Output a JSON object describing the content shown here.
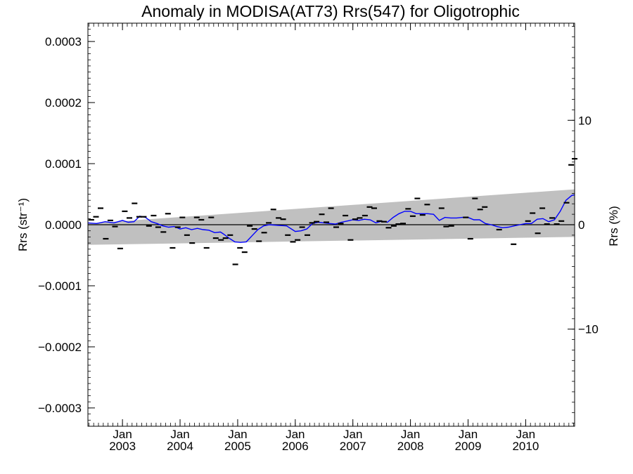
{
  "chart_data": {
    "type": "scatter",
    "title": "Anomaly in MODISA(AT73) Rrs(547) for Oligotrophic",
    "ylabel": "Rrs (str⁻¹)",
    "y2label": "Rrs (%)",
    "xlabel": "",
    "xlim": [
      2002.4,
      2010.85
    ],
    "ylim": [
      -0.00033,
      0.00033
    ],
    "y2lim": [
      -19.3,
      19.3
    ],
    "grid": false,
    "yticks": [
      {
        "value": 0.0003,
        "label": "0.0003"
      },
      {
        "value": 0.0002,
        "label": "0.0002"
      },
      {
        "value": 0.0001,
        "label": "0.0001"
      },
      {
        "value": 0.0,
        "label": "0.0000"
      },
      {
        "value": -0.0001,
        "label": "−0.0001"
      },
      {
        "value": -0.0002,
        "label": "−0.0002"
      },
      {
        "value": -0.0003,
        "label": "−0.0003"
      }
    ],
    "y2ticks": [
      {
        "value": 10,
        "label": "10"
      },
      {
        "value": 0,
        "label": "0"
      },
      {
        "value": -10,
        "label": "−10"
      }
    ],
    "xticks": [
      {
        "value": 2003.0,
        "month": "Jan",
        "year": "2003"
      },
      {
        "value": 2004.0,
        "month": "Jan",
        "year": "2004"
      },
      {
        "value": 2005.0,
        "month": "Jan",
        "year": "2005"
      },
      {
        "value": 2006.0,
        "month": "Jan",
        "year": "2006"
      },
      {
        "value": 2007.0,
        "month": "Jan",
        "year": "2007"
      },
      {
        "value": 2008.0,
        "month": "Jan",
        "year": "2008"
      },
      {
        "value": 2009.0,
        "month": "Jan",
        "year": "2009"
      },
      {
        "value": 2010.0,
        "month": "Jan",
        "year": "2010"
      }
    ],
    "band": {
      "color": "#c0c0c0",
      "x": [
        2002.4,
        2010.85
      ],
      "upper": [
        2e-06,
        5.8e-05
      ],
      "lower": [
        -3.3e-05,
        -2e-05
      ]
    },
    "monthly_anomaly": {
      "color": "#000000",
      "points": [
        [
          2002.46,
          8e-06
        ],
        [
          2002.54,
          1.3e-05
        ],
        [
          2002.62,
          2.7e-05
        ],
        [
          2002.71,
          -2.3e-05
        ],
        [
          2002.79,
          7e-06
        ],
        [
          2002.87,
          -3e-06
        ],
        [
          2002.96,
          -3.9e-05
        ],
        [
          2003.04,
          2.2e-05
        ],
        [
          2003.12,
          1.1e-05
        ],
        [
          2003.21,
          3.5e-05
        ],
        [
          2003.29,
          1.3e-05
        ],
        [
          2003.37,
          1.3e-05
        ],
        [
          2003.46,
          -2e-06
        ],
        [
          2003.54,
          1.5e-05
        ],
        [
          2003.62,
          -4e-06
        ],
        [
          2003.71,
          -1.2e-05
        ],
        [
          2003.79,
          1.8e-05
        ],
        [
          2003.87,
          -3.8e-05
        ],
        [
          2003.96,
          -4e-06
        ],
        [
          2004.04,
          1.2e-05
        ],
        [
          2004.12,
          -1.7e-05
        ],
        [
          2004.21,
          -3e-05
        ],
        [
          2004.29,
          1.2e-05
        ],
        [
          2004.37,
          8e-06
        ],
        [
          2004.46,
          -3.8e-05
        ],
        [
          2004.54,
          1.2e-05
        ],
        [
          2004.62,
          -2.2e-05
        ],
        [
          2004.71,
          -2.5e-05
        ],
        [
          2004.79,
          -2.2e-05
        ],
        [
          2004.87,
          -1.7e-05
        ],
        [
          2004.96,
          -6.5e-05
        ],
        [
          2005.04,
          -3.8e-05
        ],
        [
          2005.12,
          -4.5e-05
        ],
        [
          2005.21,
          -2e-06
        ],
        [
          2005.29,
          -7e-06
        ],
        [
          2005.37,
          -2.7e-05
        ],
        [
          2005.46,
          -1.3e-05
        ],
        [
          2005.54,
          3e-06
        ],
        [
          2005.62,
          2.5e-05
        ],
        [
          2005.71,
          1.1e-05
        ],
        [
          2005.79,
          9e-06
        ],
        [
          2005.87,
          -1.7e-05
        ],
        [
          2005.96,
          -2.8e-05
        ],
        [
          2006.04,
          -2.5e-05
        ],
        [
          2006.12,
          -4e-06
        ],
        [
          2006.21,
          -1.7e-05
        ],
        [
          2006.29,
          3e-06
        ],
        [
          2006.37,
          5e-06
        ],
        [
          2006.46,
          1.7e-05
        ],
        [
          2006.54,
          4e-06
        ],
        [
          2006.62,
          2.7e-05
        ],
        [
          2006.71,
          -4e-06
        ],
        [
          2006.79,
          2e-06
        ],
        [
          2006.87,
          1.5e-05
        ],
        [
          2006.96,
          -2.5e-05
        ],
        [
          2007.04,
          9e-06
        ],
        [
          2007.12,
          1.1e-05
        ],
        [
          2007.21,
          1.5e-05
        ],
        [
          2007.29,
          2.9e-05
        ],
        [
          2007.37,
          2.7e-05
        ],
        [
          2007.46,
          6e-06
        ],
        [
          2007.54,
          5e-06
        ],
        [
          2007.62,
          -5e-06
        ],
        [
          2007.71,
          -2e-06
        ],
        [
          2007.79,
          1e-06
        ],
        [
          2007.87,
          2e-06
        ],
        [
          2007.96,
          2.6e-05
        ],
        [
          2008.04,
          1.4e-05
        ],
        [
          2008.12,
          4.3e-05
        ],
        [
          2008.21,
          1.6e-05
        ],
        [
          2008.29,
          3.3e-05
        ],
        [
          2008.54,
          2.7e-05
        ],
        [
          2008.62,
          -3e-06
        ],
        [
          2008.71,
          -2e-06
        ],
        [
          2008.96,
          1.2e-05
        ],
        [
          2009.04,
          -2.3e-05
        ],
        [
          2009.12,
          4.3e-05
        ],
        [
          2009.21,
          2.5e-05
        ],
        [
          2009.29,
          2.9e-05
        ],
        [
          2009.54,
          -8e-06
        ],
        [
          2009.79,
          -3.2e-05
        ],
        [
          2010.04,
          6e-06
        ],
        [
          2010.12,
          1.9e-05
        ],
        [
          2010.21,
          -1.4e-05
        ],
        [
          2010.29,
          2.7e-05
        ],
        [
          2010.37,
          1e-06
        ],
        [
          2010.46,
          1.1e-05
        ],
        [
          2010.54,
          1e-06
        ],
        [
          2010.62,
          6e-06
        ],
        [
          2010.71,
          3.6e-05
        ],
        [
          2010.79,
          9.8e-05
        ],
        [
          2010.85,
          0.000108
        ]
      ]
    },
    "running_mean": {
      "color": "#0000ff",
      "x": [
        2002.4,
        2002.55,
        2002.7,
        2002.85,
        2003.0,
        2003.1,
        2003.2,
        2003.3,
        2003.4,
        2003.5,
        2003.6,
        2003.7,
        2003.8,
        2003.9,
        2004.0,
        2004.1,
        2004.2,
        2004.3,
        2004.4,
        2004.5,
        2004.6,
        2004.7,
        2004.75,
        2004.85,
        2004.95,
        2005.05,
        2005.15,
        2005.25,
        2005.35,
        2005.45,
        2005.55,
        2005.7,
        2005.85,
        2006.0,
        2006.1,
        2006.2,
        2006.3,
        2006.4,
        2006.5,
        2006.6,
        2006.7,
        2006.8,
        2006.9,
        2007.0,
        2007.1,
        2007.2,
        2007.3,
        2007.4,
        2007.5,
        2007.6,
        2007.7,
        2007.8,
        2007.9,
        2008.0,
        2008.1,
        2008.2,
        2008.3,
        2008.4,
        2008.5,
        2008.6,
        2008.7,
        2008.8,
        2008.9,
        2009.0,
        2009.1,
        2009.2,
        2009.3,
        2009.4,
        2009.5,
        2009.6,
        2009.7,
        2009.8,
        2009.9,
        2010.0,
        2010.1,
        2010.2,
        2010.3,
        2010.4,
        2010.5,
        2010.6,
        2010.7,
        2010.8,
        2010.85
      ],
      "y": [
        3e-06,
        2e-06,
        5e-06,
        3e-06,
        7e-06,
        4e-06,
        5e-06,
        1.4e-05,
        1.2e-05,
        5e-06,
        2e-06,
        -2e-06,
        -4e-06,
        -3e-06,
        -7e-06,
        -5e-06,
        -8e-06,
        -6e-06,
        -8e-06,
        -9e-06,
        -1.3e-05,
        -1.2e-05,
        -1.5e-05,
        -2.2e-05,
        -2.8e-05,
        -2.9e-05,
        -2.8e-05,
        -1.8e-05,
        -8e-06,
        -2e-06,
        0.0,
        -1e-06,
        -2e-06,
        -1.1e-05,
        -1e-05,
        -7e-06,
        2e-06,
        4e-06,
        3e-06,
        2e-06,
        1e-06,
        4e-06,
        6e-06,
        8e-06,
        7e-06,
        9e-06,
        8e-06,
        3e-06,
        6e-06,
        4e-06,
        1.2e-05,
        1.8e-05,
        2.2e-05,
        2.2e-05,
        1.8e-05,
        1.8e-05,
        1.8e-05,
        1.7e-05,
        7e-06,
        1.2e-05,
        1.1e-05,
        1.1e-05,
        1.2e-05,
        1.2e-05,
        8e-06,
        8e-06,
        2e-06,
        0.0,
        -3e-06,
        -5e-06,
        -4e-06,
        -2e-06,
        0.0,
        2e-06,
        2e-06,
        9e-06,
        1e-05,
        5e-06,
        8e-06,
        2.2e-05,
        4e-05,
        4.8e-05,
        4.9e-05
      ]
    },
    "zero_line": {
      "color": "#000000",
      "value": 0.0
    }
  }
}
